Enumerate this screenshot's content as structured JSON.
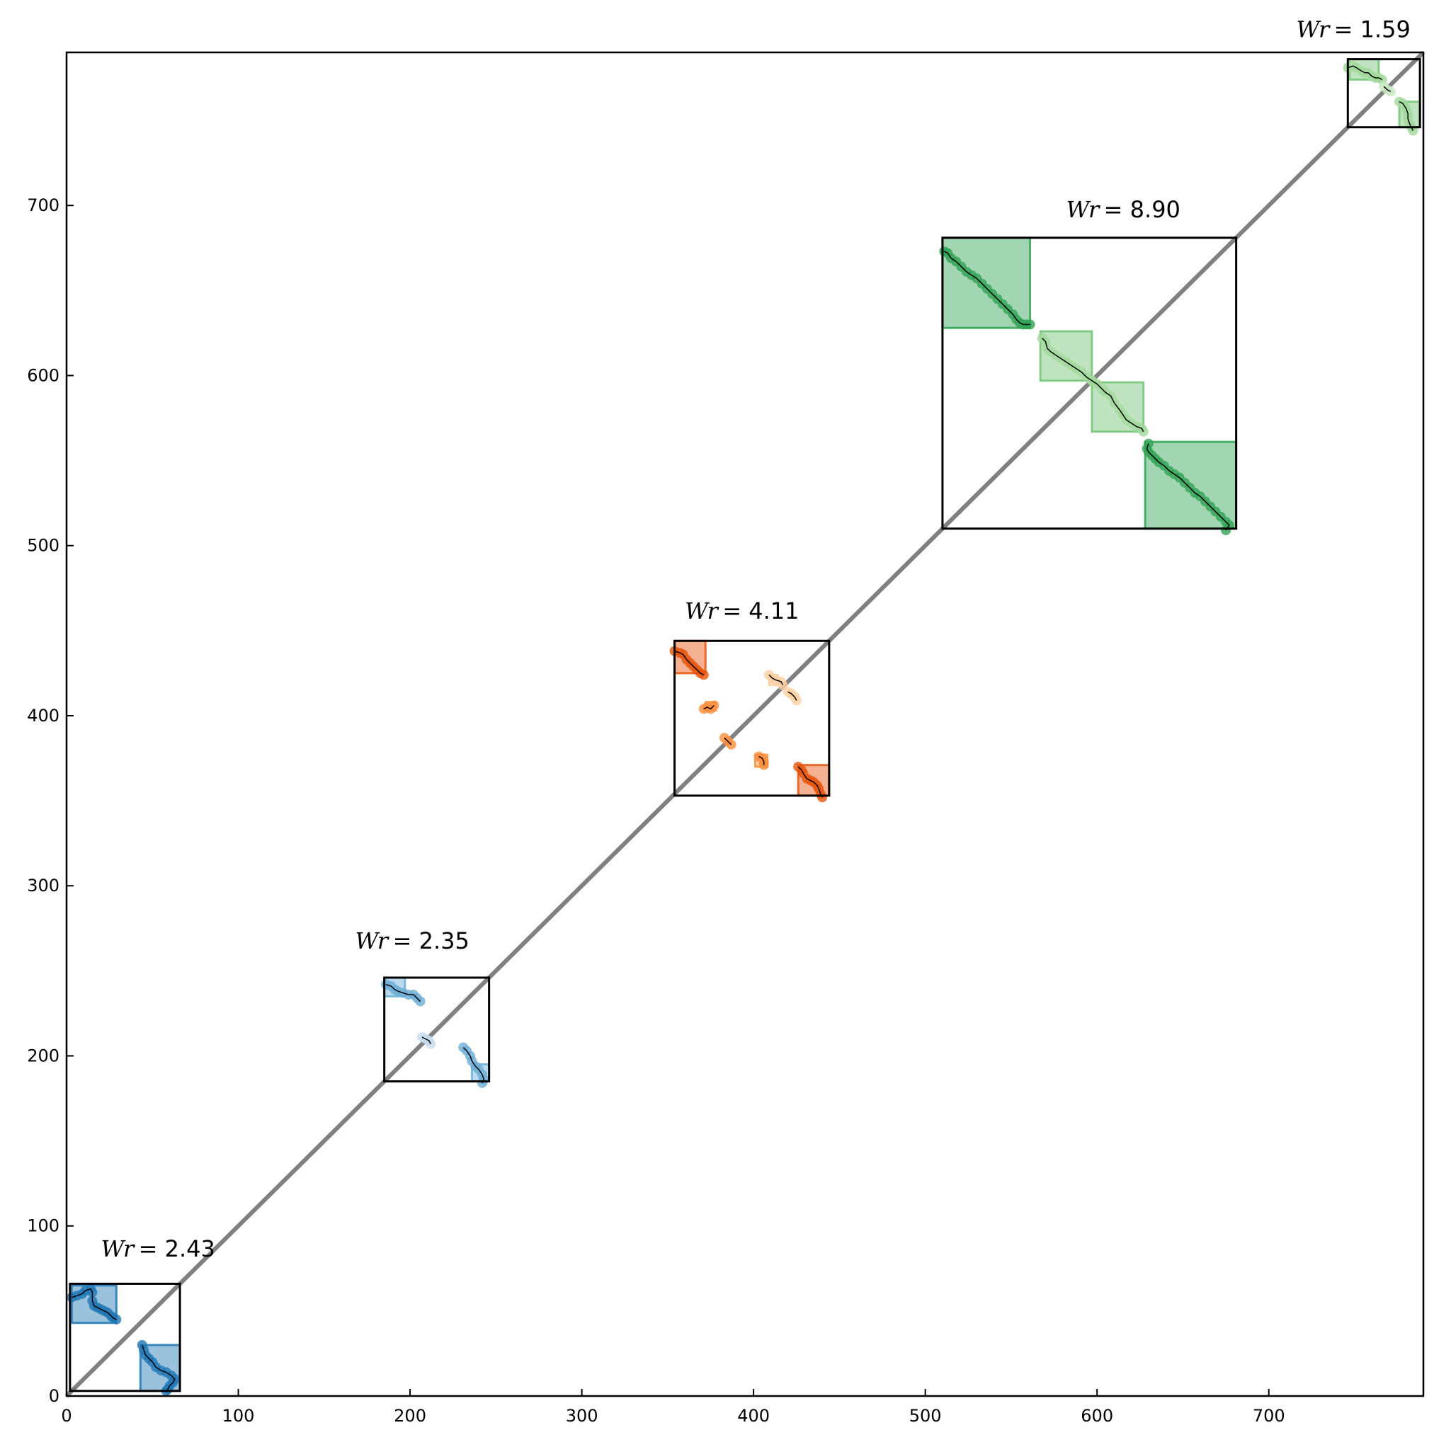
{
  "chart_data": {
    "type": "scatter",
    "title": "",
    "xlabel": "",
    "ylabel": "",
    "xlim": [
      0,
      790
    ],
    "ylim": [
      0,
      790
    ],
    "xticks": [
      0,
      100,
      200,
      300,
      400,
      500,
      600,
      700
    ],
    "yticks": [
      0,
      100,
      200,
      300,
      400,
      500,
      600,
      700
    ],
    "diagonal": {
      "from": [
        0,
        0
      ],
      "to": [
        790,
        790
      ],
      "color": "#808080"
    },
    "colors": {
      "blue_dark": "#1f77b4",
      "blue_light": "#9ecae1",
      "orange_dark": "#e6550d",
      "orange_light": "#fdae6b",
      "green_dark": "#31a354",
      "green_light": "#a1d99b"
    },
    "clusters": [
      {
        "label_prefix": "Wr",
        "label_value": "= 2.43",
        "label_pos": [
          20,
          82
        ],
        "box": [
          2,
          3,
          66,
          66
        ],
        "subboxes": [
          {
            "x0": 3,
            "y0": 43,
            "x1": 29,
            "y1": 65,
            "color": "#1f77b4"
          },
          {
            "x0": 43,
            "y0": 3,
            "x1": 66,
            "y1": 30,
            "color": "#1f77b4"
          }
        ],
        "segments": [
          {
            "color": "#1f77b4",
            "points": [
              [
                3,
                58
              ],
              [
                6,
                59
              ],
              [
                9,
                60
              ],
              [
                11,
                62
              ],
              [
                14,
                63
              ],
              [
                15,
                61
              ],
              [
                15,
                56
              ],
              [
                16,
                53
              ],
              [
                18,
                52
              ],
              [
                20,
                51
              ],
              [
                22,
                50
              ],
              [
                24,
                49
              ],
              [
                26,
                47
              ],
              [
                27,
                46
              ],
              [
                29,
                45
              ]
            ]
          },
          {
            "color": "#1f77b4",
            "points": [
              [
                44,
                30
              ],
              [
                45,
                27
              ],
              [
                46,
                24
              ],
              [
                48,
                22
              ],
              [
                50,
                20
              ],
              [
                52,
                17
              ],
              [
                55,
                15
              ],
              [
                58,
                14
              ],
              [
                61,
                12
              ],
              [
                63,
                10
              ],
              [
                62,
                8
              ],
              [
                60,
                6
              ],
              [
                59,
                4
              ],
              [
                58,
                3
              ]
            ]
          }
        ]
      },
      {
        "label_prefix": "Wr",
        "label_value": "= 2.35",
        "label_pos": [
          168,
          263
        ],
        "box": [
          185,
          185,
          246,
          246
        ],
        "subboxes": [
          {
            "x0": 185,
            "y0": 235,
            "x1": 197,
            "y1": 246,
            "color": "#6baed6"
          },
          {
            "x0": 236,
            "y0": 185,
            "x1": 246,
            "y1": 195,
            "color": "#6baed6"
          }
        ],
        "segments": [
          {
            "color": "#6baed6",
            "points": [
              [
                186,
                242
              ],
              [
                189,
                241
              ],
              [
                191,
                239
              ],
              [
                193,
                238
              ],
              [
                196,
                237
              ],
              [
                199,
                236
              ],
              [
                202,
                236
              ],
              [
                204,
                234
              ],
              [
                206,
                232
              ]
            ]
          },
          {
            "color": "#c6dbef",
            "points": [
              [
                207,
                211
              ],
              [
                209,
                210
              ],
              [
                211,
                209
              ],
              [
                212,
                207
              ]
            ]
          },
          {
            "color": "#6baed6",
            "points": [
              [
                231,
                205
              ],
              [
                233,
                203
              ],
              [
                235,
                200
              ],
              [
                236,
                197
              ],
              [
                238,
                194
              ],
              [
                240,
                192
              ],
              [
                242,
                189
              ],
              [
                243,
                186
              ],
              [
                242,
                184
              ]
            ]
          }
        ]
      },
      {
        "label_prefix": "Wr",
        "label_value": "= 4.11",
        "label_pos": [
          360,
          457
        ],
        "box": [
          354,
          353,
          444,
          444
        ],
        "subboxes": [
          {
            "x0": 354,
            "y0": 425,
            "x1": 372,
            "y1": 444,
            "color": "#e6550d"
          },
          {
            "x0": 426,
            "y0": 353,
            "x1": 444,
            "y1": 371,
            "color": "#e6550d"
          },
          {
            "x0": 372,
            "y0": 403,
            "x1": 378,
            "y1": 408,
            "color": "#fd8d3c"
          },
          {
            "x0": 401,
            "y0": 370,
            "x1": 408,
            "y1": 377,
            "color": "#fd8d3c"
          },
          {
            "x0": 409,
            "y0": 418,
            "x1": 414,
            "y1": 424,
            "color": "#fdd0a2"
          }
        ],
        "segments": [
          {
            "color": "#e6550d",
            "points": [
              [
                354,
                438
              ],
              [
                357,
                437
              ],
              [
                359,
                436
              ],
              [
                361,
                433
              ],
              [
                363,
                431
              ],
              [
                365,
                429
              ],
              [
                367,
                427
              ],
              [
                369,
                425
              ],
              [
                371,
                424
              ]
            ]
          },
          {
            "color": "#fdd0a2",
            "points": [
              [
                409,
                424
              ],
              [
                411,
                422
              ],
              [
                413,
                421
              ],
              [
                416,
                420
              ],
              [
                417,
                418
              ]
            ]
          },
          {
            "color": "#fdd0a2",
            "points": [
              [
                420,
                414
              ],
              [
                422,
                413
              ],
              [
                424,
                411
              ],
              [
                425,
                409
              ]
            ]
          },
          {
            "color": "#fd8d3c",
            "points": [
              [
                371,
                404
              ],
              [
                373,
                405
              ],
              [
                375,
                404
              ],
              [
                377,
                406
              ]
            ]
          },
          {
            "color": "#fd8d3c",
            "points": [
              [
                383,
                387
              ],
              [
                385,
                385
              ],
              [
                387,
                383
              ]
            ]
          },
          {
            "color": "#fd8d3c",
            "points": [
              [
                403,
                376
              ],
              [
                405,
                375
              ],
              [
                406,
                373
              ],
              [
                406,
                371
              ]
            ]
          },
          {
            "color": "#e6550d",
            "points": [
              [
                426,
                370
              ],
              [
                428,
                368
              ],
              [
                429,
                366
              ],
              [
                431,
                363
              ],
              [
                433,
                362
              ],
              [
                435,
                361
              ],
              [
                437,
                359
              ],
              [
                438,
                357
              ],
              [
                439,
                354
              ],
              [
                440,
                352
              ]
            ]
          }
        ]
      },
      {
        "label_prefix": "Wr",
        "label_value": "= 8.90",
        "label_pos": [
          582,
          693
        ],
        "box": [
          510,
          510,
          681,
          681
        ],
        "subboxes": [
          {
            "x0": 510,
            "y0": 628,
            "x1": 561,
            "y1": 681,
            "color": "#31a354"
          },
          {
            "x0": 567,
            "y0": 597,
            "x1": 597,
            "y1": 626,
            "color": "#74c476"
          },
          {
            "x0": 597,
            "y0": 567,
            "x1": 627,
            "y1": 596,
            "color": "#74c476"
          },
          {
            "x0": 628,
            "y0": 510,
            "x1": 681,
            "y1": 561,
            "color": "#31a354"
          }
        ],
        "segments": [
          {
            "color": "#31a354",
            "points": [
              [
                511,
                673
              ],
              [
                513,
                672
              ],
              [
                515,
                669
              ],
              [
                518,
                667
              ],
              [
                521,
                664
              ],
              [
                524,
                661
              ],
              [
                527,
                659
              ],
              [
                530,
                657
              ],
              [
                533,
                654
              ],
              [
                536,
                651
              ],
              [
                539,
                648
              ],
              [
                542,
                645
              ],
              [
                545,
                642
              ],
              [
                548,
                639
              ],
              [
                551,
                636
              ],
              [
                553,
                633
              ],
              [
                555,
                631
              ],
              [
                557,
                630
              ],
              [
                559,
                630
              ],
              [
                561,
                630
              ]
            ]
          },
          {
            "color": "#a1d99b",
            "points": [
              [
                568,
                622
              ],
              [
                570,
                620
              ],
              [
                571,
                616
              ],
              [
                573,
                614
              ],
              [
                576,
                612
              ],
              [
                579,
                610
              ],
              [
                582,
                608
              ],
              [
                585,
                606
              ],
              [
                588,
                604
              ],
              [
                591,
                602
              ],
              [
                594,
                599
              ],
              [
                597,
                597
              ]
            ]
          },
          {
            "color": "#a1d99b",
            "points": [
              [
                597,
                597
              ],
              [
                600,
                595
              ],
              [
                603,
                592
              ],
              [
                605,
                590
              ],
              [
                608,
                588
              ],
              [
                610,
                584
              ],
              [
                613,
                580
              ],
              [
                615,
                577
              ],
              [
                617,
                574
              ],
              [
                620,
                572
              ],
              [
                623,
                570
              ],
              [
                626,
                569
              ],
              [
                627,
                567
              ]
            ]
          },
          {
            "color": "#31a354",
            "points": [
              [
                630,
                560
              ],
              [
                629,
                557
              ],
              [
                630,
                555
              ],
              [
                632,
                553
              ],
              [
                634,
                551
              ],
              [
                636,
                549
              ],
              [
                639,
                547
              ],
              [
                642,
                544
              ],
              [
                645,
                542
              ],
              [
                648,
                540
              ],
              [
                651,
                537
              ],
              [
                654,
                534
              ],
              [
                657,
                531
              ],
              [
                660,
                529
              ],
              [
                663,
                526
              ],
              [
                666,
                523
              ],
              [
                669,
                520
              ],
              [
                672,
                517
              ],
              [
                675,
                514
              ],
              [
                677,
                512
              ],
              [
                675,
                509
              ]
            ]
          }
        ]
      },
      {
        "label_prefix": "Wr",
        "label_value": "= 1.59",
        "label_pos": [
          716,
          799
        ],
        "box": [
          746,
          746,
          788,
          786
        ],
        "subboxes": [
          {
            "x0": 747,
            "y0": 774,
            "x1": 764,
            "y1": 786,
            "color": "#74c476"
          },
          {
            "x0": 776,
            "y0": 746,
            "x1": 788,
            "y1": 761,
            "color": "#74c476"
          }
        ],
        "segments": [
          {
            "color": "#a1d99b",
            "points": [
              [
                746,
                781
              ],
              [
                749,
                782
              ],
              [
                751,
                781
              ],
              [
                754,
                779
              ],
              [
                756,
                778
              ],
              [
                758,
                778
              ],
              [
                760,
                776
              ],
              [
                762,
                775
              ],
              [
                764,
                775
              ],
              [
                766,
                774
              ]
            ]
          },
          {
            "color": "#c7e9c0",
            "points": [
              [
                767,
                770
              ],
              [
                769,
                768
              ],
              [
                771,
                767
              ]
            ]
          },
          {
            "color": "#a1d99b",
            "points": [
              [
                776,
                761
              ],
              [
                778,
                760
              ],
              [
                780,
                757
              ],
              [
                781,
                754
              ],
              [
                781,
                751
              ],
              [
                782,
                748
              ],
              [
                783,
                746
              ],
              [
                784,
                744
              ]
            ]
          }
        ]
      }
    ]
  }
}
